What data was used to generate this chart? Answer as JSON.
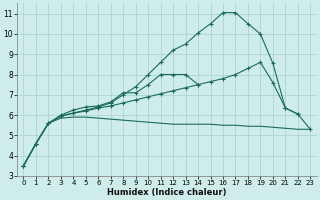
{
  "xlabel": "Humidex (Indice chaleur)",
  "bg_color": "#ceecea",
  "grid_color": "#aed4d0",
  "line_color": "#1a6b5a",
  "xlim": [
    -0.5,
    23.5
  ],
  "ylim": [
    3,
    11.5
  ],
  "xticks": [
    0,
    1,
    2,
    3,
    4,
    5,
    6,
    7,
    8,
    9,
    10,
    11,
    12,
    13,
    14,
    15,
    16,
    17,
    18,
    19,
    20,
    21,
    22,
    23
  ],
  "yticks": [
    3,
    4,
    5,
    6,
    7,
    8,
    9,
    10,
    11
  ],
  "series": [
    {
      "x": [
        0,
        1,
        2,
        3,
        4,
        5,
        6,
        7,
        8,
        9,
        10,
        11,
        12,
        13,
        14
      ],
      "y": [
        3.5,
        4.6,
        5.6,
        6.0,
        6.25,
        6.4,
        6.45,
        6.65,
        7.1,
        7.1,
        7.5,
        8.0,
        8.0,
        8.0,
        7.5
      ],
      "marker": true
    },
    {
      "x": [
        0,
        1,
        2,
        3,
        4,
        5,
        6,
        7,
        8,
        9,
        10,
        11,
        12,
        13,
        14,
        15,
        16,
        17,
        18,
        19,
        20,
        21,
        22
      ],
      "y": [
        3.5,
        4.6,
        5.6,
        5.95,
        6.1,
        6.25,
        6.4,
        6.6,
        7.0,
        7.4,
        8.0,
        8.6,
        9.2,
        9.5,
        10.05,
        10.5,
        11.05,
        11.05,
        10.5,
        10.0,
        8.55,
        6.35,
        6.05
      ],
      "marker": true
    },
    {
      "x": [
        0,
        1,
        2,
        3,
        4,
        5,
        6,
        7,
        8,
        9,
        10,
        11,
        12,
        13,
        14,
        15,
        16,
        17,
        18,
        19,
        20,
        21,
        22,
        23
      ],
      "y": [
        3.5,
        4.6,
        5.6,
        5.85,
        5.9,
        5.9,
        5.85,
        5.8,
        5.75,
        5.7,
        5.65,
        5.6,
        5.55,
        5.55,
        5.55,
        5.55,
        5.5,
        5.5,
        5.45,
        5.45,
        5.4,
        5.35,
        5.3,
        5.3
      ],
      "marker": false
    },
    {
      "x": [
        0,
        1,
        2,
        3,
        4,
        5,
        6,
        7,
        8,
        9,
        10,
        11,
        12,
        13,
        14,
        15,
        16,
        17,
        18,
        19,
        20,
        21,
        22,
        23
      ],
      "y": [
        3.5,
        4.6,
        5.6,
        5.95,
        6.1,
        6.2,
        6.35,
        6.45,
        6.6,
        6.75,
        6.9,
        7.05,
        7.2,
        7.35,
        7.5,
        7.65,
        7.8,
        8.0,
        8.3,
        8.6,
        7.6,
        6.35,
        6.05,
        5.3
      ],
      "marker": true
    }
  ]
}
